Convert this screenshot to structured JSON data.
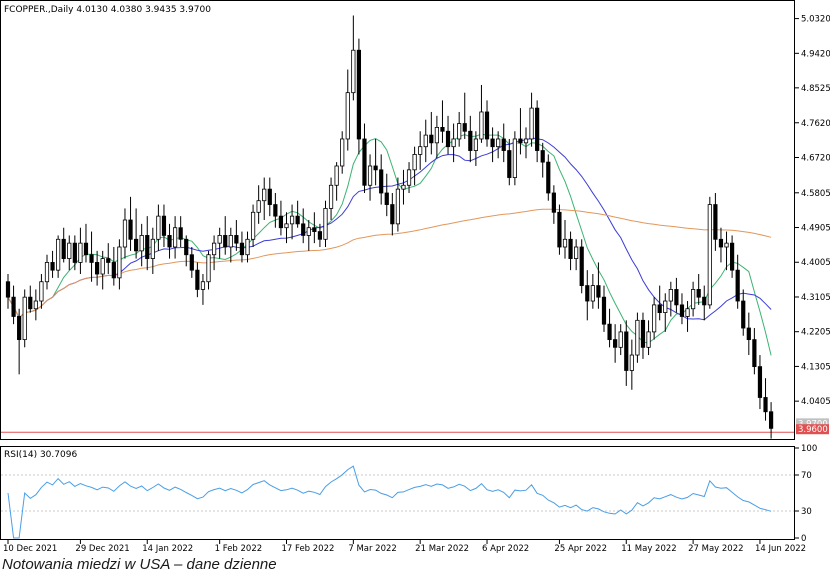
{
  "caption": "Notowania miedzi w USA – dane dzienne",
  "chart_data": [
    {
      "type": "candlestick",
      "header": "FCOPPER.,Daily  4.0130 4.0380 3.9435 3.9700",
      "symbol": "FCOPPER.",
      "timeframe": "Daily",
      "last_bar": {
        "open": 4.013,
        "high": 4.038,
        "low": 3.9435,
        "close": 3.97
      },
      "price_tags": [
        "3.9700",
        "3.9600"
      ],
      "y_ticks": [
        "5.0320",
        "4.9420",
        "4.8525",
        "4.7620",
        "4.6720",
        "4.5805",
        "4.4905",
        "4.4005",
        "4.3105",
        "4.2205",
        "4.1305",
        "4.0405"
      ],
      "ylim": [
        3.945,
        5.075
      ],
      "x_ticks": [
        "10 Dec 2021",
        "29 Dec 2021",
        "14 Jan 2022",
        "1 Feb 2022",
        "17 Feb 2022",
        "7 Mar 2022",
        "21 Mar 2022",
        "6 Apr 2022",
        "25 Apr 2022",
        "11 May 2022",
        "27 May 2022",
        "14 Jun 2022"
      ],
      "x_tick_bar_index": [
        0,
        13,
        25,
        38,
        50,
        62,
        74,
        86,
        99,
        111,
        123,
        135
      ],
      "ohlc": [
        [
          4.35,
          4.37,
          4.28,
          4.31
        ],
        [
          4.31,
          4.34,
          4.24,
          4.26
        ],
        [
          4.26,
          4.28,
          4.11,
          4.2
        ],
        [
          4.2,
          4.33,
          4.18,
          4.31
        ],
        [
          4.31,
          4.34,
          4.27,
          4.28
        ],
        [
          4.28,
          4.33,
          4.25,
          4.3
        ],
        [
          4.3,
          4.37,
          4.28,
          4.35
        ],
        [
          4.35,
          4.42,
          4.33,
          4.4
        ],
        [
          4.4,
          4.43,
          4.36,
          4.38
        ],
        [
          4.38,
          4.47,
          4.36,
          4.46
        ],
        [
          4.46,
          4.49,
          4.4,
          4.41
        ],
        [
          4.41,
          4.47,
          4.38,
          4.45
        ],
        [
          4.45,
          4.47,
          4.38,
          4.4
        ],
        [
          4.4,
          4.49,
          4.37,
          4.45
        ],
        [
          4.45,
          4.5,
          4.4,
          4.42
        ],
        [
          4.42,
          4.48,
          4.35,
          4.4
        ],
        [
          4.4,
          4.43,
          4.34,
          4.37
        ],
        [
          4.37,
          4.43,
          4.33,
          4.41
        ],
        [
          4.41,
          4.45,
          4.37,
          4.4
        ],
        [
          4.4,
          4.44,
          4.34,
          4.36
        ],
        [
          4.36,
          4.46,
          4.33,
          4.44
        ],
        [
          4.44,
          4.54,
          4.41,
          4.51
        ],
        [
          4.51,
          4.57,
          4.43,
          4.46
        ],
        [
          4.46,
          4.54,
          4.41,
          4.43
        ],
        [
          4.43,
          4.5,
          4.39,
          4.47
        ],
        [
          4.47,
          4.52,
          4.38,
          4.41
        ],
        [
          4.41,
          4.49,
          4.37,
          4.46
        ],
        [
          4.46,
          4.55,
          4.43,
          4.52
        ],
        [
          4.52,
          4.55,
          4.44,
          4.47
        ],
        [
          4.47,
          4.5,
          4.41,
          4.44
        ],
        [
          4.44,
          4.52,
          4.41,
          4.49
        ],
        [
          4.49,
          4.52,
          4.44,
          4.46
        ],
        [
          4.46,
          4.47,
          4.39,
          4.42
        ],
        [
          4.42,
          4.44,
          4.36,
          4.38
        ],
        [
          4.38,
          4.4,
          4.31,
          4.33
        ],
        [
          4.33,
          4.37,
          4.29,
          4.35
        ],
        [
          4.35,
          4.43,
          4.33,
          4.42
        ],
        [
          4.42,
          4.47,
          4.38,
          4.45
        ],
        [
          4.45,
          4.49,
          4.41,
          4.47
        ],
        [
          4.47,
          4.52,
          4.42,
          4.44
        ],
        [
          4.44,
          4.49,
          4.4,
          4.47
        ],
        [
          4.47,
          4.51,
          4.43,
          4.45
        ],
        [
          4.45,
          4.48,
          4.4,
          4.42
        ],
        [
          4.42,
          4.48,
          4.4,
          4.46
        ],
        [
          4.46,
          4.55,
          4.44,
          4.53
        ],
        [
          4.53,
          4.6,
          4.5,
          4.56
        ],
        [
          4.56,
          4.62,
          4.51,
          4.59
        ],
        [
          4.59,
          4.62,
          4.52,
          4.55
        ],
        [
          4.55,
          4.58,
          4.49,
          4.52
        ],
        [
          4.52,
          4.56,
          4.47,
          4.49
        ],
        [
          4.49,
          4.53,
          4.45,
          4.5
        ],
        [
          4.5,
          4.55,
          4.46,
          4.52
        ],
        [
          4.52,
          4.56,
          4.49,
          4.5
        ],
        [
          4.5,
          4.54,
          4.45,
          4.47
        ],
        [
          4.47,
          4.51,
          4.43,
          4.49
        ],
        [
          4.49,
          4.53,
          4.45,
          4.48
        ],
        [
          4.48,
          4.5,
          4.44,
          4.46
        ],
        [
          4.46,
          4.56,
          4.44,
          4.54
        ],
        [
          4.54,
          4.62,
          4.51,
          4.6
        ],
        [
          4.6,
          4.66,
          4.56,
          4.65
        ],
        [
          4.65,
          4.74,
          4.63,
          4.72
        ],
        [
          4.72,
          4.9,
          4.69,
          4.84
        ],
        [
          4.84,
          5.04,
          4.82,
          4.95
        ],
        [
          4.95,
          4.98,
          4.68,
          4.72
        ],
        [
          4.72,
          4.76,
          4.58,
          4.6
        ],
        [
          4.6,
          4.68,
          4.56,
          4.65
        ],
        [
          4.65,
          4.72,
          4.6,
          4.64
        ],
        [
          4.64,
          4.68,
          4.55,
          4.58
        ],
        [
          4.58,
          4.63,
          4.52,
          4.55
        ],
        [
          4.55,
          4.58,
          4.47,
          4.5
        ],
        [
          4.5,
          4.62,
          4.48,
          4.59
        ],
        [
          4.59,
          4.64,
          4.55,
          4.6
        ],
        [
          4.6,
          4.66,
          4.58,
          4.64
        ],
        [
          4.64,
          4.7,
          4.6,
          4.68
        ],
        [
          4.68,
          4.74,
          4.64,
          4.7
        ],
        [
          4.7,
          4.77,
          4.66,
          4.73
        ],
        [
          4.73,
          4.79,
          4.68,
          4.71
        ],
        [
          4.71,
          4.78,
          4.67,
          4.75
        ],
        [
          4.75,
          4.82,
          4.71,
          4.74
        ],
        [
          4.74,
          4.78,
          4.68,
          4.7
        ],
        [
          4.7,
          4.76,
          4.66,
          4.72
        ],
        [
          4.72,
          4.79,
          4.7,
          4.76
        ],
        [
          4.76,
          4.84,
          4.72,
          4.74
        ],
        [
          4.74,
          4.78,
          4.66,
          4.69
        ],
        [
          4.69,
          4.74,
          4.65,
          4.72
        ],
        [
          4.72,
          4.86,
          4.71,
          4.79
        ],
        [
          4.79,
          4.82,
          4.7,
          4.72
        ],
        [
          4.72,
          4.75,
          4.66,
          4.7
        ],
        [
          4.7,
          4.74,
          4.67,
          4.72
        ],
        [
          4.72,
          4.76,
          4.66,
          4.69
        ],
        [
          4.69,
          4.72,
          4.6,
          4.62
        ],
        [
          4.62,
          4.74,
          4.6,
          4.72
        ],
        [
          4.72,
          4.8,
          4.68,
          4.71
        ],
        [
          4.71,
          4.75,
          4.67,
          4.72
        ],
        [
          4.72,
          4.84,
          4.7,
          4.8
        ],
        [
          4.8,
          4.82,
          4.66,
          4.69
        ],
        [
          4.69,
          4.71,
          4.62,
          4.66
        ],
        [
          4.66,
          4.68,
          4.56,
          4.58
        ],
        [
          4.58,
          4.6,
          4.5,
          4.53
        ],
        [
          4.53,
          4.55,
          4.42,
          4.44
        ],
        [
          4.44,
          4.51,
          4.41,
          4.46
        ],
        [
          4.46,
          4.48,
          4.38,
          4.41
        ],
        [
          4.41,
          4.46,
          4.38,
          4.44
        ],
        [
          4.44,
          4.46,
          4.32,
          4.34
        ],
        [
          4.34,
          4.38,
          4.25,
          4.3
        ],
        [
          4.3,
          4.37,
          4.28,
          4.34
        ],
        [
          4.34,
          4.4,
          4.28,
          4.31
        ],
        [
          4.31,
          4.34,
          4.22,
          4.24
        ],
        [
          4.24,
          4.28,
          4.18,
          4.2
        ],
        [
          4.2,
          4.24,
          4.14,
          4.18
        ],
        [
          4.18,
          4.24,
          4.16,
          4.22
        ],
        [
          4.22,
          4.25,
          4.08,
          4.12
        ],
        [
          4.12,
          4.2,
          4.07,
          4.16
        ],
        [
          4.16,
          4.27,
          4.14,
          4.25
        ],
        [
          4.25,
          4.27,
          4.15,
          4.18
        ],
        [
          4.18,
          4.25,
          4.16,
          4.22
        ],
        [
          4.22,
          4.31,
          4.2,
          4.29
        ],
        [
          4.29,
          4.34,
          4.25,
          4.27
        ],
        [
          4.27,
          4.32,
          4.22,
          4.3
        ],
        [
          4.3,
          4.35,
          4.26,
          4.33
        ],
        [
          4.33,
          4.36,
          4.27,
          4.29
        ],
        [
          4.29,
          4.32,
          4.24,
          4.26
        ],
        [
          4.26,
          4.3,
          4.22,
          4.28
        ],
        [
          4.28,
          4.35,
          4.26,
          4.33
        ],
        [
          4.33,
          4.37,
          4.29,
          4.31
        ],
        [
          4.31,
          4.34,
          4.25,
          4.29
        ],
        [
          4.29,
          4.57,
          4.28,
          4.55
        ],
        [
          4.55,
          4.58,
          4.43,
          4.46
        ],
        [
          4.46,
          4.49,
          4.4,
          4.44
        ],
        [
          4.44,
          4.48,
          4.38,
          4.45
        ],
        [
          4.45,
          4.47,
          4.36,
          4.38
        ],
        [
          4.38,
          4.42,
          4.28,
          4.3
        ],
        [
          4.3,
          4.33,
          4.21,
          4.23
        ],
        [
          4.23,
          4.27,
          4.16,
          4.2
        ],
        [
          4.2,
          4.23,
          4.11,
          4.13
        ],
        [
          4.13,
          4.16,
          4.02,
          4.05
        ],
        [
          4.05,
          4.1,
          3.99,
          4.013
        ],
        [
          4.013,
          4.038,
          3.9435,
          3.97
        ]
      ],
      "indicators": [
        {
          "name": "short-ma",
          "color": "#3cb371"
        },
        {
          "name": "mid-ma",
          "color": "#3c3cd7"
        },
        {
          "name": "long-ma",
          "color": "#e2975a"
        }
      ],
      "horizontal_lines": [
        {
          "value": 3.96,
          "color": "#e05050"
        }
      ]
    },
    {
      "type": "line",
      "title": "RSI(14) 30.7096",
      "y_ticks": [
        "100",
        "70",
        "30",
        "0"
      ],
      "y_levels": [
        70,
        30
      ],
      "ylim": [
        0,
        100
      ],
      "color": "#4a9ee6"
    }
  ]
}
